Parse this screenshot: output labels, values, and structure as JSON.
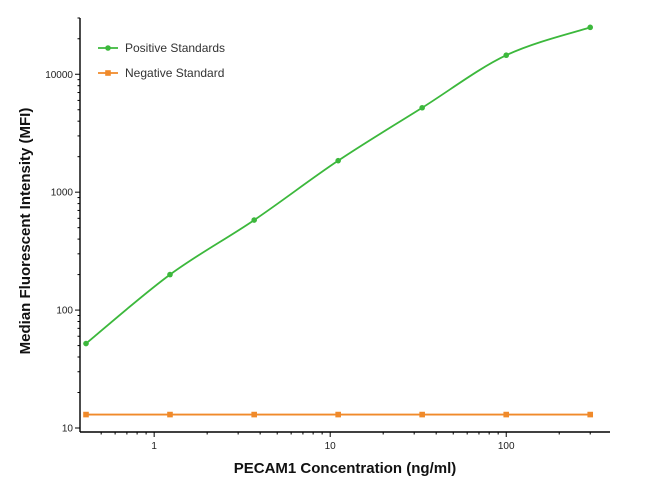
{
  "chart_data": {
    "type": "line",
    "xlabel": "PECAM1 Concentration (ng/ml)",
    "ylabel": "Median  Fluorescent Intensity  (MFI)",
    "x_scale": "log",
    "y_scale": "log",
    "xlim": [
      0.41,
      350
    ],
    "ylim": [
      10,
      30000
    ],
    "x_ticks": [
      1,
      10,
      100
    ],
    "x_tick_labels": [
      "1",
      "10",
      "100"
    ],
    "y_ticks": [
      10,
      100,
      1000,
      10000
    ],
    "y_tick_labels": [
      "10",
      "100",
      "1000",
      "10000"
    ],
    "legend_position": "top-left",
    "series": [
      {
        "name": "Positive Standards",
        "color": "#3cb83c",
        "x": [
          0.41,
          1.23,
          3.7,
          11.1,
          33.3,
          100,
          300
        ],
        "y": [
          52,
          200,
          580,
          1850,
          5200,
          14500,
          25000
        ]
      },
      {
        "name": "Negative Standard",
        "color": "#f08a2a",
        "x": [
          0.41,
          1.23,
          3.7,
          11.1,
          33.3,
          100,
          300
        ],
        "y": [
          13,
          13,
          13,
          13,
          13,
          13,
          13
        ]
      }
    ]
  }
}
